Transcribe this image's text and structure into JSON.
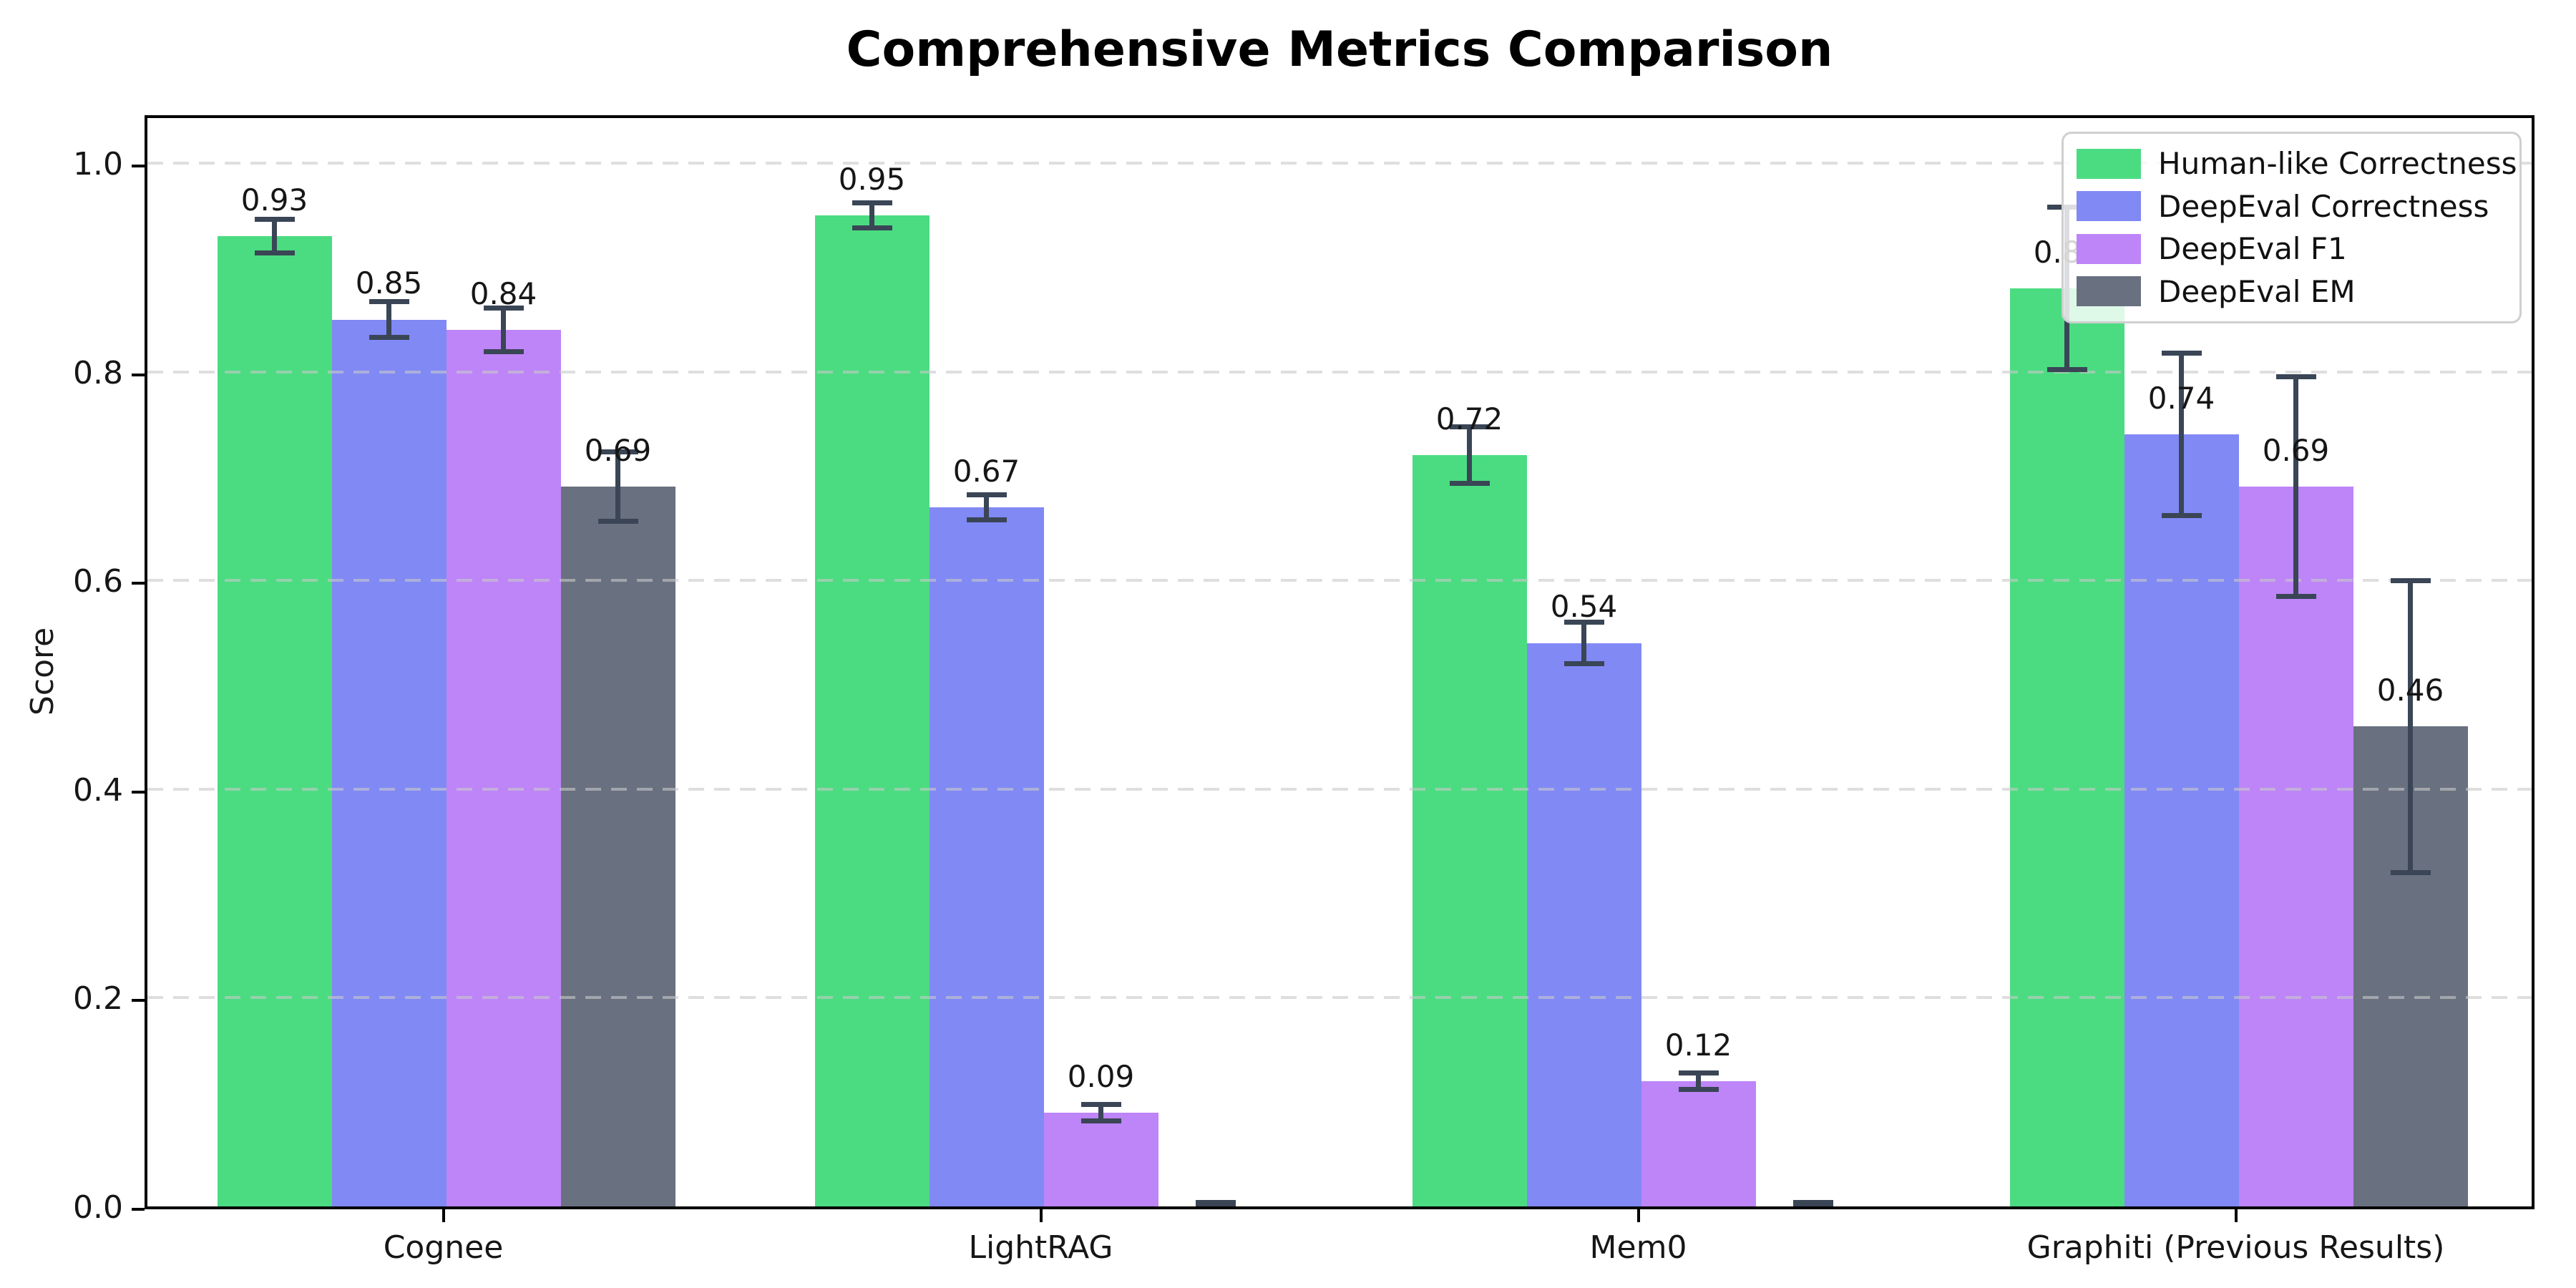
{
  "title": "Comprehensive Metrics Comparison",
  "chart_data": {
    "type": "bar",
    "title": "Comprehensive Metrics Comparison",
    "xlabel": "",
    "ylabel": "Score",
    "categories": [
      "Cognee",
      "LightRAG",
      "Mem0",
      "Graphiti (Previous Results)"
    ],
    "series": [
      {
        "name": "Human-like Correctness",
        "color": "#4bdc81",
        "values": [
          0.93,
          0.95,
          0.72,
          0.88
        ],
        "errors": [
          0.016,
          0.012,
          0.027,
          0.078
        ],
        "labels": [
          "0.93",
          "0.95",
          "0.72",
          "0.88"
        ]
      },
      {
        "name": "DeepEval Correctness",
        "color": "#8189f5",
        "values": [
          0.85,
          0.67,
          0.54,
          0.74
        ],
        "errors": [
          0.017,
          0.012,
          0.02,
          0.078
        ],
        "labels": [
          "0.85",
          "0.67",
          "0.54",
          "0.74"
        ]
      },
      {
        "name": "DeepEval F1",
        "color": "#bd85f7",
        "values": [
          0.84,
          0.09,
          0.12,
          0.69
        ],
        "errors": [
          0.021,
          0.008,
          0.008,
          0.105
        ],
        "labels": [
          "0.84",
          "0.09",
          "0.12",
          "0.69"
        ]
      },
      {
        "name": "DeepEval EM",
        "color": "#697080",
        "values": [
          0.69,
          0.0,
          0.0,
          0.46
        ],
        "errors": [
          0.033,
          0.004,
          0.004,
          0.14
        ],
        "labels": [
          "0.69",
          "",
          "",
          "0.46"
        ]
      }
    ],
    "yticks": [
      0.0,
      0.2,
      0.4,
      0.6,
      0.8,
      1.0
    ],
    "ytick_labels": [
      "0.0",
      "0.2",
      "0.4",
      "0.6",
      "0.8",
      "1.0"
    ],
    "ylim": [
      0,
      1.049
    ],
    "grid": "dashed horizontal",
    "legend_position": "upper right",
    "error_color": "#3a4556",
    "background": "#ffffff"
  }
}
